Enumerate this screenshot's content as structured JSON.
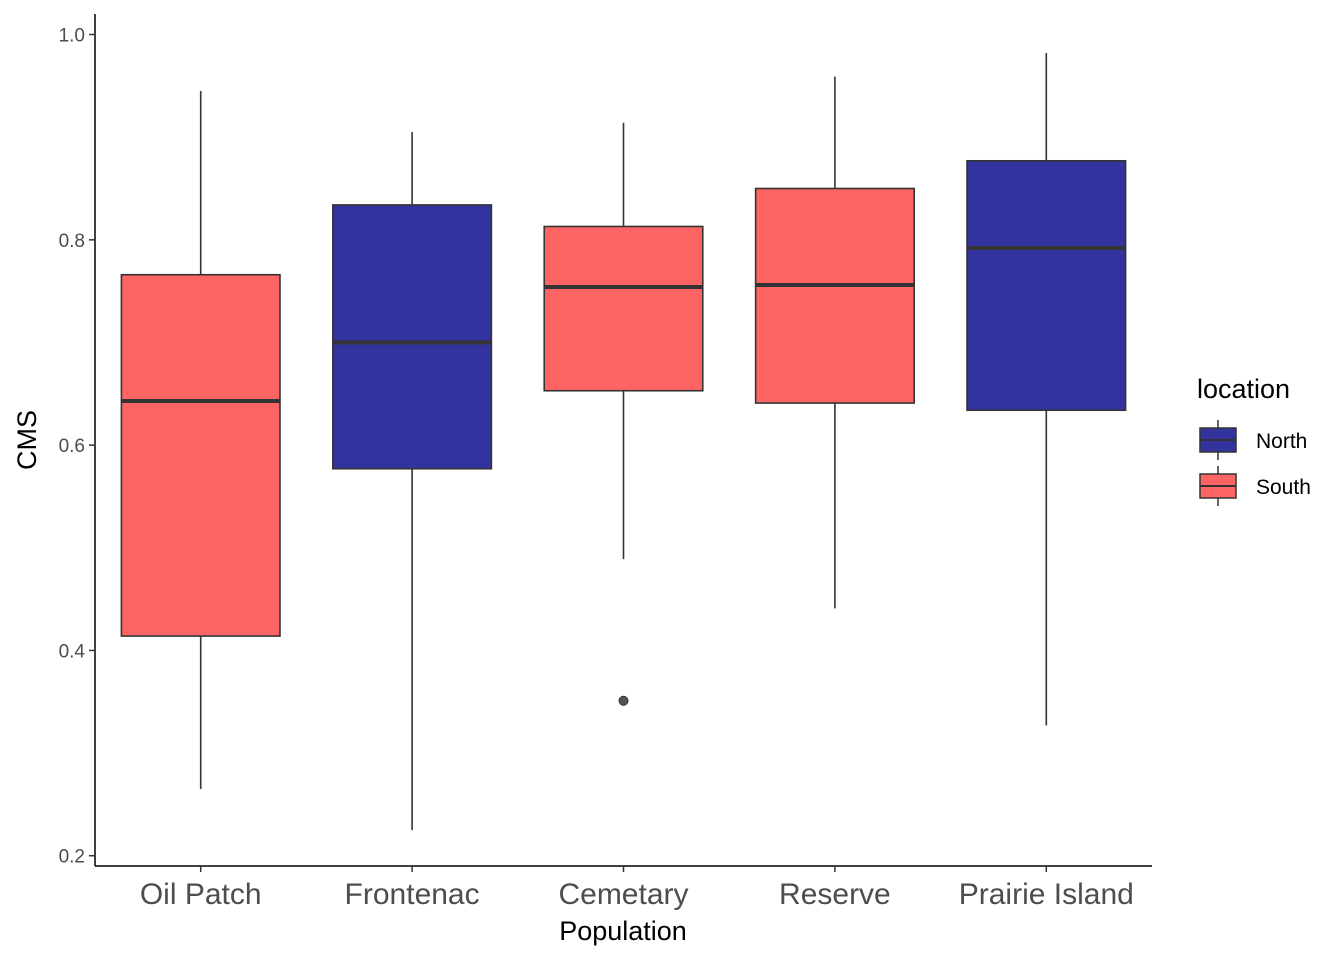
{
  "chart_data": {
    "type": "boxplot",
    "xlabel": "Population",
    "ylabel": "CMS",
    "ylim": [
      0.19,
      1.02
    ],
    "yticks": [
      0.2,
      0.4,
      0.6,
      0.8,
      1.0
    ],
    "ytick_labels": [
      "0.2",
      "0.4",
      "0.6",
      "0.8",
      "1.0"
    ],
    "grid": false,
    "legend": {
      "title": "location",
      "placement": "right",
      "entries": [
        {
          "label": "North",
          "color": "#3333a0"
        },
        {
          "label": "South",
          "color": "#ff6464"
        }
      ]
    },
    "categories": [
      "Oil Patch",
      "Frontenac",
      "Cemetary",
      "Reserve",
      "Prairie Island"
    ],
    "boxes": [
      {
        "category": "Oil Patch",
        "location": "South",
        "whisker_low": 0.265,
        "q1": 0.414,
        "median": 0.643,
        "q3": 0.766,
        "whisker_high": 0.945,
        "outliers": []
      },
      {
        "category": "Frontenac",
        "location": "North",
        "whisker_low": 0.225,
        "q1": 0.577,
        "median": 0.7,
        "q3": 0.834,
        "whisker_high": 0.905,
        "outliers": []
      },
      {
        "category": "Cemetary",
        "location": "South",
        "whisker_low": 0.489,
        "q1": 0.653,
        "median": 0.754,
        "q3": 0.813,
        "whisker_high": 0.914,
        "outliers": [
          0.351
        ]
      },
      {
        "category": "Reserve",
        "location": "South",
        "whisker_low": 0.441,
        "q1": 0.641,
        "median": 0.756,
        "q3": 0.85,
        "whisker_high": 0.959,
        "outliers": []
      },
      {
        "category": "Prairie Island",
        "location": "North",
        "whisker_low": 0.327,
        "q1": 0.634,
        "median": 0.792,
        "q3": 0.877,
        "whisker_high": 0.982,
        "outliers": []
      }
    ]
  }
}
